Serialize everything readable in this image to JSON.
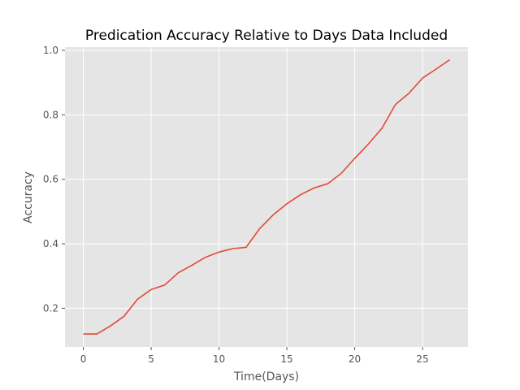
{
  "chart_data": {
    "type": "line",
    "title": "Predication Accuracy Relative to Days Data Included",
    "xlabel": "Time(Days)",
    "ylabel": "Accuracy",
    "xlim": [
      -1.35,
      28.35
    ],
    "ylim": [
      0.08,
      1.01
    ],
    "xticks": [
      0,
      5,
      10,
      15,
      20,
      25
    ],
    "yticks": [
      0.2,
      0.4,
      0.6,
      0.8,
      1.0
    ],
    "xtick_labels": [
      "0",
      "5",
      "10",
      "15",
      "20",
      "25"
    ],
    "ytick_labels": [
      "0.2",
      "0.4",
      "0.6",
      "0.8",
      "1.0"
    ],
    "grid": true,
    "x": [
      0,
      1,
      2,
      3,
      4,
      5,
      6,
      7,
      8,
      9,
      10,
      11,
      12,
      13,
      14,
      15,
      16,
      17,
      18,
      19,
      20,
      21,
      22,
      23,
      24,
      25,
      26,
      27
    ],
    "series": [
      {
        "values": [
          0.12,
          0.12,
          0.145,
          0.175,
          0.228,
          0.258,
          0.272,
          0.31,
          0.333,
          0.358,
          0.374,
          0.385,
          0.389,
          0.447,
          0.49,
          0.524,
          0.552,
          0.573,
          0.586,
          0.618,
          0.665,
          0.709,
          0.758,
          0.832,
          0.867,
          0.914,
          0.942,
          0.971
        ],
        "color": "#e24a33"
      }
    ],
    "background_color": "#e5e5e5",
    "grid_color": "#ffffff",
    "tick_label_color": "#555555"
  }
}
